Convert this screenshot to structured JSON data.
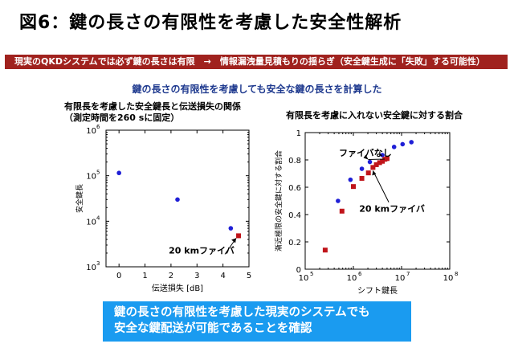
{
  "page": {
    "title": "図6：鍵の長さの有限性を考慮した安全性解析",
    "banner": "現実のQKDシステムでは必ず鍵の長さは有限　→　情報漏洩量見積もりの揺らぎ（安全鍵生成に「失敗」する可能性）",
    "subtitle": "鍵の長さの有限性を考慮しても安全な鍵の長さを計算した",
    "left_title": "有限長を考慮した安全鍵長と伝送損失の関係\n（測定時間を260 sに固定）",
    "right_title": "有限長を考慮に入れない安全鍵に対する割合",
    "conclusion_lines": [
      "鍵の長さの有限性を考慮した現実のシステムでも",
      "安全な鍵配送が可能であることを確認"
    ]
  },
  "colors": {
    "blue": "#1f1fd6",
    "red": "#c0141a",
    "banner": "#a0221e",
    "conclusion": "#1a9bf0"
  },
  "chart_data": [
    {
      "type": "scatter",
      "xlabel": "伝送損失 [dB]",
      "ylabel": "安全鍵長",
      "xlim": [
        -0.5,
        5
      ],
      "xticks": [
        0,
        1,
        2,
        3,
        4,
        5
      ],
      "ylim": [
        1000,
        1000000
      ],
      "yscale": "log",
      "ytick_labels": [
        "10",
        "10",
        "10",
        "10"
      ],
      "ytick_exps": [
        "3",
        "4",
        "5",
        "6"
      ],
      "yticks": [
        1000,
        10000,
        100000,
        1000000
      ],
      "series": [
        {
          "points": [
            [
              0,
              115000
            ],
            [
              2.25,
              30000
            ],
            [
              4.3,
              7000
            ]
          ],
          "color": "#1f1fd6",
          "marker": "circle"
        },
        {
          "points": [
            [
              4.6,
              4800
            ]
          ],
          "color": "#c0141a",
          "marker": "square"
        }
      ],
      "annotations": [
        {
          "text": "20 kmファイバ",
          "x": 3.3,
          "y": 2700
        }
      ]
    },
    {
      "type": "scatter",
      "xlabel": "シフト鍵長",
      "ylabel": "漸近極限の安全鍵に対する割合",
      "xscale": "log",
      "xlim": [
        100000,
        100000000
      ],
      "xticks": [
        100000,
        1000000,
        10000000,
        100000000
      ],
      "xtick_labels": [
        "10",
        "10",
        "10",
        "10"
      ],
      "xtick_exps": [
        "5",
        "6",
        "7",
        "8"
      ],
      "ylim": [
        0,
        1
      ],
      "yticks": [
        0,
        0.2,
        0.4,
        0.6,
        0.8,
        1
      ],
      "ytick_labels": [
        "0",
        "0.2",
        "0.4",
        "0.6",
        "0.8",
        "1"
      ],
      "series": [
        {
          "color": "#1f1fd6",
          "marker": "circle",
          "points": [
            [
              480000,
              0.5
            ],
            [
              870000,
              0.655
            ],
            [
              1500000,
              0.735
            ],
            [
              2200000,
              0.785
            ],
            [
              4000000,
              0.835
            ],
            [
              7000000,
              0.895
            ],
            [
              10500000,
              0.915
            ],
            [
              16000000,
              0.93
            ]
          ]
        },
        {
          "color": "#c0141a",
          "marker": "square",
          "points": [
            [
              260000,
              0.14
            ],
            [
              580000,
              0.425
            ],
            [
              1000000,
              0.605
            ],
            [
              1500000,
              0.665
            ],
            [
              2050000,
              0.705
            ],
            [
              2550000,
              0.745
            ],
            [
              3000000,
              0.765
            ],
            [
              3500000,
              0.78
            ],
            [
              4000000,
              0.79
            ],
            [
              4500000,
              0.805
            ],
            [
              5000000,
              0.81
            ]
          ]
        }
      ],
      "annotations": [
        {
          "text": "ファイバなし",
          "x": 260000,
          "y": 0.9
        },
        {
          "text": "20 kmファイバ",
          "x": 2000000,
          "y": 0.42
        }
      ]
    }
  ]
}
